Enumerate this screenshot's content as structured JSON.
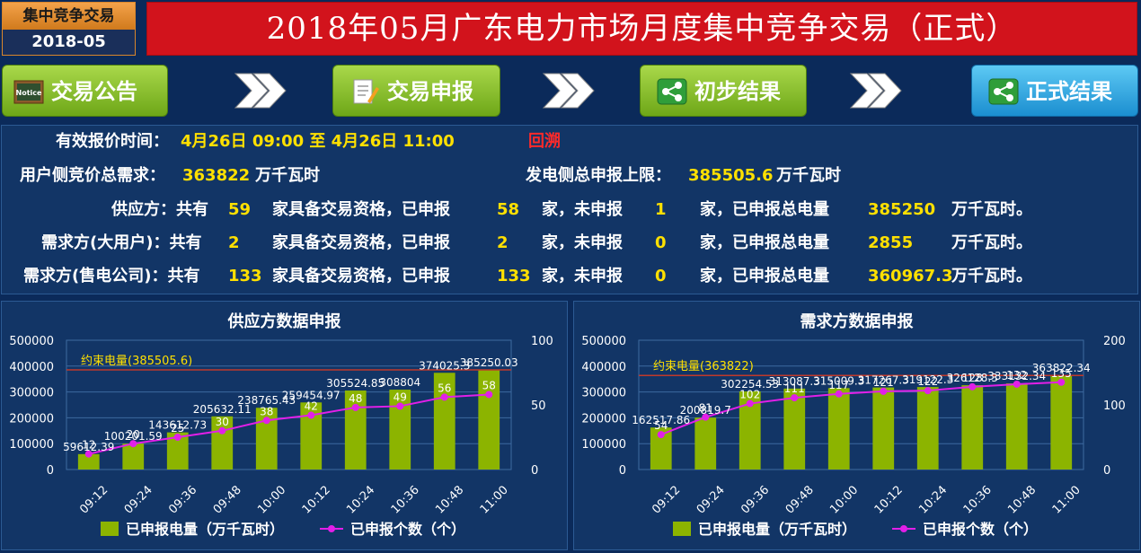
{
  "header": {
    "badge_line1": "集中竞争交易",
    "badge_line2": "2018-05",
    "title": "2018年05月广东电力市场月度集中竞争交易（正式）"
  },
  "nav": {
    "items": [
      {
        "label": "交易公告",
        "icon": "notice-board-icon",
        "color": "#8bc53f"
      },
      {
        "label": "交易申报",
        "icon": "document-edit-icon",
        "color": "#8bc53f"
      },
      {
        "label": "初步结果",
        "icon": "share-icon",
        "color": "#8bc53f"
      },
      {
        "label": "正式结果",
        "icon": "share-icon",
        "color": "#2ea7e8"
      }
    ],
    "arrow_icon": "chevron-double-right-icon"
  },
  "info": {
    "time_label": "有效报价时间：",
    "time_value": "4月26日 09:00 至 4月26日 11:00",
    "replay": "回溯",
    "user_demand_label": "用户侧竞价总需求：",
    "user_demand_value": "363822",
    "unit_kwh": "万千瓦时",
    "gen_limit_label": "发电侧总申报上限：",
    "gen_limit_value": "385505.6",
    "rows": [
      {
        "party": "供应方：共有",
        "qualified": "59",
        "declared": "58",
        "undeclared": "1",
        "total": "385250",
        "tail": "万千瓦时。"
      },
      {
        "party": "需求方(大用户)：共有",
        "qualified": "2",
        "declared": "2",
        "undeclared": "0",
        "total": "2855",
        "tail": "万千瓦时。"
      },
      {
        "party": "需求方(售电公司)：共有",
        "qualified": "133",
        "declared": "133",
        "undeclared": "0",
        "total": "360967.3",
        "tail": "万千瓦时。"
      }
    ],
    "txt_qualified": "家具备交易资格，已申报",
    "txt_undeclared": "家，未申报",
    "txt_total": "家，已申报总电量"
  },
  "legend": {
    "bar_label": "已申报电量（万千瓦时）",
    "line_label": "已申报个数（个）"
  },
  "colors": {
    "bar": "#8cb400",
    "line": "#e21fe8",
    "constraint": "#c0392b",
    "constraint_text": "#ffe000",
    "grid": "#3d6aa0"
  },
  "chart_data": [
    {
      "type": "bar",
      "title": "供应方数据申报",
      "categories": [
        "09:12",
        "09:24",
        "09:36",
        "09:48",
        "10:00",
        "10:12",
        "10:24",
        "10:36",
        "10:48",
        "11:00"
      ],
      "series": [
        {
          "name": "已申报电量（万千瓦时）",
          "axis": "left",
          "type": "bar",
          "values": [
            59612.39,
            100201.59,
            143612.73,
            205632.11,
            238765.43,
            259454.97,
            305524.85,
            308804,
            374025.3,
            385250.03
          ],
          "labels": [
            "59612.39",
            "100201.59",
            "143612.73",
            "205632.11",
            "238765.43",
            "259454.97",
            "305524.85",
            "308804",
            "374025.3",
            "385250.03"
          ]
        },
        {
          "name": "已申报个数（个）",
          "axis": "right",
          "type": "line",
          "values": [
            12,
            20,
            25,
            30,
            38,
            42,
            48,
            49,
            56,
            58
          ]
        }
      ],
      "reference_line": {
        "label": "约束电量(385505.6)",
        "value": 385505.6
      },
      "y_left": {
        "min": 0,
        "max": 500000,
        "ticks": [
          "0",
          "100000",
          "200000",
          "300000",
          "400000",
          "500000"
        ]
      },
      "y_right": {
        "min": 0,
        "max": 100,
        "ticks": [
          "0",
          "50",
          "100"
        ]
      }
    },
    {
      "type": "bar",
      "title": "需求方数据申报",
      "categories": [
        "09:12",
        "09:24",
        "09:36",
        "09:48",
        "10:00",
        "10:12",
        "10:24",
        "10:36",
        "10:48",
        "11:00"
      ],
      "series": [
        {
          "name": "已申报电量（万千瓦时）",
          "axis": "left",
          "type": "bar",
          "values": [
            162517.86,
            200819.7,
            302254.53,
            313087.3,
            315009.3,
            317267.3,
            319122.3,
            326128.3,
            333132.34,
            363822.34
          ],
          "labels": [
            "162517.86",
            "200819.7",
            "302254.53",
            "313087.3",
            "315009.3",
            "317267.3",
            "319122.3",
            "326128.3",
            "333132.34",
            "363822.34"
          ]
        },
        {
          "name": "已申报个数（个）",
          "axis": "right",
          "type": "line",
          "values": [
            54,
            81,
            102,
            111,
            117,
            121,
            122,
            128,
            132,
            135
          ]
        }
      ],
      "reference_line": {
        "label": "约束电量(363822)",
        "value": 363822
      },
      "y_left": {
        "min": 0,
        "max": 500000,
        "ticks": [
          "0",
          "100000",
          "200000",
          "300000",
          "400000",
          "500000"
        ]
      },
      "y_right": {
        "min": 0,
        "max": 200,
        "ticks": [
          "0",
          "100",
          "200"
        ]
      }
    }
  ]
}
